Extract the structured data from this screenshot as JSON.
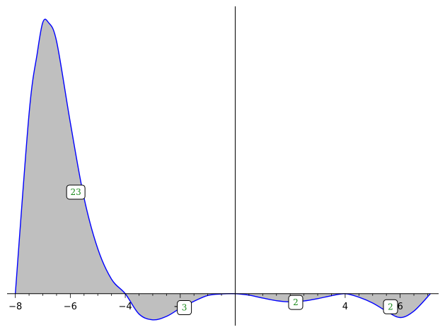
{
  "chart_data": {
    "type": "area",
    "title": "",
    "xlabel": "",
    "ylabel": "",
    "xlim": [
      -8.3,
      7.4
    ],
    "ylim": [
      -1.1,
      9.9
    ],
    "x_ticks": [
      -8,
      -6,
      -4,
      -2,
      4,
      6
    ],
    "x_tick_labels": [
      "−8",
      "−6",
      "−4",
      "−2",
      "4",
      "6"
    ],
    "grid": false,
    "fill_between_curve_and_axis": true,
    "x_range": [
      -8,
      7.1
    ],
    "series": [
      {
        "x": [
          -8,
          -7.5,
          -7.2,
          -7.0,
          -6.8,
          -6.5,
          -6.0,
          -5.5,
          -5.0,
          -4.5,
          -4.0,
          -3.5,
          -3.0,
          -2.5,
          -2.0,
          -1.5,
          -1.0,
          -0.5,
          0,
          0.5,
          1,
          1.5,
          2,
          2.5,
          3,
          3.5,
          4,
          4.5,
          5,
          5.5,
          6,
          6.5,
          7.1
        ],
        "y": [
          0,
          6.2,
          8.3,
          9.35,
          9.35,
          8.7,
          5.9,
          3.3,
          1.55,
          0.5,
          0,
          -0.7,
          -0.9,
          -0.78,
          -0.5,
          -0.26,
          -0.06,
          -0.01,
          0,
          -0.05,
          -0.15,
          -0.24,
          -0.28,
          -0.25,
          -0.17,
          -0.07,
          0,
          -0.12,
          -0.32,
          -0.6,
          -0.82,
          -0.6,
          0
        ]
      }
    ],
    "annotations": [
      {
        "text": "23",
        "x": -5.8,
        "y": 3.5
      },
      {
        "text": "3",
        "x": -1.85,
        "y": -0.48
      },
      {
        "text": "2",
        "x": 2.2,
        "y": -0.3
      },
      {
        "text": "2",
        "x": 5.65,
        "y": -0.45
      }
    ],
    "colors": {
      "line": "#0000ff",
      "fill": "#bfbfbf",
      "axes": "#000000",
      "annotation_text": "#1a8a1a",
      "annotation_border": "#000000"
    }
  }
}
